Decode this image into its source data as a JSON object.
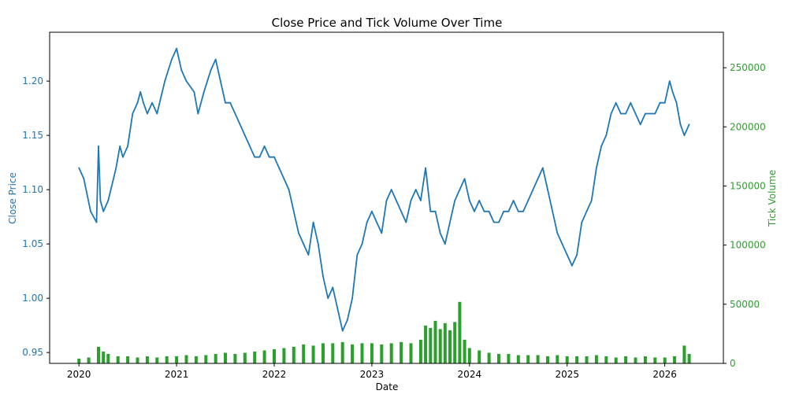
{
  "chart_data": {
    "type": "line+bar",
    "title": "Close Price and Tick Volume Over Time",
    "xlabel": "Date",
    "x_ticks": [
      "2020",
      "2021",
      "2022",
      "2023",
      "2024",
      "2025",
      "2026"
    ],
    "x_range": [
      2019.7,
      2026.6
    ],
    "left_axis": {
      "label": "Close Price",
      "ticks": [
        "0.95",
        "1.00",
        "1.05",
        "1.10",
        "1.15",
        "1.20"
      ],
      "tick_values": [
        0.95,
        1.0,
        1.05,
        1.1,
        1.15,
        1.2
      ],
      "ylim": [
        0.94,
        1.245
      ],
      "color": "#1f77b4"
    },
    "right_axis": {
      "label": "Tick Volume",
      "ticks": [
        "0",
        "50000",
        "100000",
        "150000",
        "200000",
        "250000"
      ],
      "tick_values": [
        0,
        50000,
        100000,
        150000,
        200000,
        250000
      ],
      "ylim": [
        0,
        280000
      ],
      "color": "#2ca02c"
    },
    "series": [
      {
        "name": "Close Price",
        "axis": "left",
        "color": "#1f77b4",
        "x": [
          2020.0,
          2020.05,
          2020.12,
          2020.18,
          2020.2,
          2020.22,
          2020.25,
          2020.3,
          2020.38,
          2020.42,
          2020.45,
          2020.5,
          2020.55,
          2020.6,
          2020.63,
          2020.66,
          2020.7,
          2020.75,
          2020.8,
          2020.88,
          2020.95,
          2021.0,
          2021.05,
          2021.1,
          2021.18,
          2021.22,
          2021.28,
          2021.35,
          2021.4,
          2021.45,
          2021.5,
          2021.55,
          2021.6,
          2021.65,
          2021.7,
          2021.75,
          2021.8,
          2021.85,
          2021.9,
          2021.95,
          2022.0,
          2022.05,
          2022.1,
          2022.15,
          2022.2,
          2022.25,
          2022.3,
          2022.35,
          2022.4,
          2022.45,
          2022.5,
          2022.55,
          2022.6,
          2022.65,
          2022.7,
          2022.75,
          2022.8,
          2022.85,
          2022.9,
          2022.95,
          2023.0,
          2023.05,
          2023.1,
          2023.15,
          2023.2,
          2023.25,
          2023.3,
          2023.35,
          2023.4,
          2023.45,
          2023.5,
          2023.55,
          2023.6,
          2023.65,
          2023.7,
          2023.75,
          2023.8,
          2023.85,
          2023.9,
          2023.95,
          2024.0,
          2024.05,
          2024.1,
          2024.15,
          2024.2,
          2024.25,
          2024.3,
          2024.35,
          2024.4,
          2024.45,
          2024.5,
          2024.55,
          2024.6,
          2024.65,
          2024.7,
          2024.75,
          2024.8,
          2024.85,
          2024.9,
          2024.95,
          2025.0,
          2025.05,
          2025.1,
          2025.15,
          2025.2,
          2025.25,
          2025.3,
          2025.35,
          2025.4,
          2025.45,
          2025.5,
          2025.55,
          2025.6,
          2025.65,
          2025.7,
          2025.75,
          2025.8,
          2025.85,
          2025.9,
          2025.95,
          2026.0,
          2026.05,
          2026.08,
          2026.12,
          2026.16,
          2026.2,
          2026.25
        ],
        "values": [
          1.12,
          1.11,
          1.08,
          1.07,
          1.14,
          1.09,
          1.08,
          1.09,
          1.12,
          1.14,
          1.13,
          1.14,
          1.17,
          1.18,
          1.19,
          1.18,
          1.17,
          1.18,
          1.17,
          1.2,
          1.22,
          1.23,
          1.21,
          1.2,
          1.19,
          1.17,
          1.19,
          1.21,
          1.22,
          1.2,
          1.18,
          1.18,
          1.17,
          1.16,
          1.15,
          1.14,
          1.13,
          1.13,
          1.14,
          1.13,
          1.13,
          1.12,
          1.11,
          1.1,
          1.08,
          1.06,
          1.05,
          1.04,
          1.07,
          1.05,
          1.02,
          1.0,
          1.01,
          0.99,
          0.97,
          0.98,
          1.0,
          1.04,
          1.05,
          1.07,
          1.08,
          1.07,
          1.06,
          1.09,
          1.1,
          1.09,
          1.08,
          1.07,
          1.09,
          1.1,
          1.09,
          1.12,
          1.08,
          1.08,
          1.06,
          1.05,
          1.07,
          1.09,
          1.1,
          1.11,
          1.09,
          1.08,
          1.09,
          1.08,
          1.08,
          1.07,
          1.07,
          1.08,
          1.08,
          1.09,
          1.08,
          1.08,
          1.09,
          1.1,
          1.11,
          1.12,
          1.1,
          1.08,
          1.06,
          1.05,
          1.04,
          1.03,
          1.04,
          1.07,
          1.08,
          1.09,
          1.12,
          1.14,
          1.15,
          1.17,
          1.18,
          1.17,
          1.17,
          1.18,
          1.17,
          1.16,
          1.17,
          1.17,
          1.17,
          1.18,
          1.18,
          1.2,
          1.19,
          1.18,
          1.16,
          1.15,
          1.16
        ]
      },
      {
        "name": "Tick Volume",
        "axis": "right",
        "color": "#2ca02c",
        "x": [
          2020.0,
          2020.1,
          2020.2,
          2020.25,
          2020.3,
          2020.4,
          2020.5,
          2020.6,
          2020.7,
          2020.8,
          2020.9,
          2021.0,
          2021.1,
          2021.2,
          2021.3,
          2021.4,
          2021.5,
          2021.6,
          2021.7,
          2021.8,
          2021.9,
          2022.0,
          2022.1,
          2022.2,
          2022.3,
          2022.4,
          2022.5,
          2022.6,
          2022.7,
          2022.8,
          2022.9,
          2023.0,
          2023.1,
          2023.2,
          2023.3,
          2023.4,
          2023.5,
          2023.55,
          2023.6,
          2023.65,
          2023.7,
          2023.75,
          2023.8,
          2023.85,
          2023.9,
          2023.95,
          2024.0,
          2024.1,
          2024.2,
          2024.3,
          2024.4,
          2024.5,
          2024.6,
          2024.7,
          2024.8,
          2024.9,
          2025.0,
          2025.1,
          2025.2,
          2025.3,
          2025.4,
          2025.5,
          2025.6,
          2025.7,
          2025.8,
          2025.9,
          2026.0,
          2026.1,
          2026.2,
          2026.25
        ],
        "values": [
          4000,
          5000,
          14000,
          10000,
          8000,
          6000,
          6000,
          5000,
          6000,
          5000,
          6000,
          6000,
          7000,
          6000,
          7000,
          8000,
          9000,
          8000,
          9000,
          10000,
          11000,
          12000,
          13000,
          14000,
          16000,
          15000,
          17000,
          17000,
          18000,
          16000,
          17000,
          17000,
          16000,
          17000,
          18000,
          17000,
          20000,
          32000,
          30000,
          36000,
          29000,
          34000,
          28000,
          35000,
          52000,
          20000,
          13000,
          11000,
          9000,
          8000,
          8000,
          7000,
          7000,
          7000,
          6000,
          7000,
          6000,
          6000,
          6000,
          7000,
          6000,
          5000,
          6000,
          5000,
          6000,
          5000,
          5000,
          6000,
          15000,
          8000
        ]
      }
    ]
  }
}
